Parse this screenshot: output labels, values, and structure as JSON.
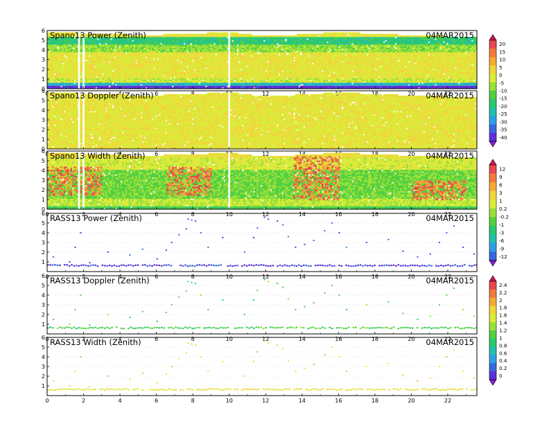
{
  "chart_data": [
    {
      "type": "heatmap",
      "title": "Spano13 Power (Zenith)",
      "date": "04MAR2015",
      "x_range": [
        0,
        23.6
      ],
      "y_range": [
        0,
        6
      ],
      "x_ticks": [
        "0",
        "2",
        "4",
        "6",
        "8",
        "10",
        "12",
        "14",
        "16",
        "18",
        "20",
        "22"
      ],
      "y_ticks": [
        "0",
        "1",
        "2",
        "3",
        "4",
        "5",
        "6"
      ],
      "colorbar": "power",
      "bands": [
        {
          "y": [
            0,
            0.35
          ],
          "level": 0.93
        },
        {
          "y": [
            0.35,
            0.75
          ],
          "level": 0.72
        },
        {
          "y": [
            0.75,
            1.2
          ],
          "level": 0.4
        },
        {
          "y": [
            1.2,
            3.8
          ],
          "level": 0.36
        },
        {
          "y": [
            3.8,
            4.6
          ],
          "level": 0.47
        },
        {
          "y": [
            4.6,
            5.4
          ],
          "level": 0.62
        }
      ],
      "top_profile": [
        [
          0,
          5.9
        ],
        [
          5.5,
          5.6
        ],
        [
          10,
          5.9
        ],
        [
          12,
          5.5
        ],
        [
          16,
          5.9
        ],
        [
          20,
          5.6
        ],
        [
          23.6,
          5.4
        ]
      ]
    },
    {
      "type": "heatmap",
      "title": "Spano13 Doppler (Zenith)",
      "date": "04MAR2015",
      "x_range": [
        0,
        23.6
      ],
      "y_range": [
        0,
        6
      ],
      "x_ticks": [
        "0",
        "2",
        "4",
        "6",
        "8",
        "10",
        "12",
        "14",
        "16",
        "18",
        "20",
        "22"
      ],
      "y_ticks": [
        "0",
        "1",
        "2",
        "3",
        "4",
        "5",
        "6"
      ],
      "colorbar": "power",
      "bands": [
        {
          "y": [
            0,
            5.4
          ],
          "level": 0.36
        }
      ],
      "top_profile": [
        [
          0,
          5.9
        ],
        [
          5.5,
          5.6
        ],
        [
          10,
          5.9
        ],
        [
          12,
          5.5
        ],
        [
          16,
          5.9
        ],
        [
          20,
          5.6
        ],
        [
          23.6,
          5.4
        ]
      ]
    },
    {
      "type": "heatmap",
      "title": "Spano13 Width (Zenith)",
      "date": "04MAR2015",
      "x_range": [
        0,
        23.6
      ],
      "y_range": [
        0,
        6
      ],
      "x_ticks": [
        "0",
        "2",
        "4",
        "6",
        "8",
        "10",
        "12",
        "14",
        "16",
        "18",
        "20",
        "22"
      ],
      "y_ticks": [
        "0",
        "1",
        "2",
        "3",
        "4",
        "5",
        "6"
      ],
      "colorbar": "width",
      "bands": [
        {
          "y": [
            0,
            0.4
          ],
          "level": 0.62
        },
        {
          "y": [
            0.4,
            1.2
          ],
          "level": 0.45
        },
        {
          "y": [
            1.2,
            4.2
          ],
          "level": 0.55
        },
        {
          "y": [
            4.2,
            5.4
          ],
          "level": 0.42
        }
      ],
      "hotspots": [
        {
          "x": [
            0,
            3
          ],
          "y": [
            1.5,
            4.5
          ]
        },
        {
          "x": [
            6.5,
            9
          ],
          "y": [
            1.5,
            4.5
          ]
        },
        {
          "x": [
            13.5,
            16
          ],
          "y": [
            1,
            5.6
          ]
        },
        {
          "x": [
            20,
            23
          ],
          "y": [
            1,
            3
          ]
        }
      ],
      "top_profile": [
        [
          0,
          5.9
        ],
        [
          5.5,
          5.6
        ],
        [
          10,
          5.9
        ],
        [
          12,
          5.5
        ],
        [
          16,
          5.9
        ],
        [
          20,
          5.6
        ],
        [
          23.6,
          5.4
        ]
      ]
    },
    {
      "type": "scatter",
      "title": "RASS13 Power (Zenith)",
      "date": "04MAR2015",
      "x_range": [
        0,
        23.6
      ],
      "y_range": [
        0,
        6
      ],
      "x_ticks": [
        "0",
        "2",
        "4",
        "6",
        "8",
        "10",
        "12",
        "14",
        "16",
        "18",
        "20",
        "22"
      ],
      "y_ticks": [
        "1",
        "2",
        "3",
        "4",
        "5",
        "6"
      ],
      "colorbar": "rass",
      "base_height": 0.6,
      "base_level": 0.9,
      "points": [
        [
          0.3,
          1.5
        ],
        [
          1.2,
          1.0
        ],
        [
          1.5,
          2.5
        ],
        [
          1.8,
          4.0
        ],
        [
          2.3,
          0.9
        ],
        [
          3.3,
          2.0
        ],
        [
          4.5,
          1.7
        ],
        [
          5.2,
          2.3
        ],
        [
          6.0,
          1.3
        ],
        [
          6.5,
          2.2
        ],
        [
          6.8,
          3.0
        ],
        [
          7.2,
          3.8
        ],
        [
          7.6,
          4.4
        ],
        [
          7.7,
          5.4
        ],
        [
          7.9,
          5.3
        ],
        [
          8.1,
          5.2
        ],
        [
          8.4,
          4.0
        ],
        [
          8.8,
          2.5
        ],
        [
          9.6,
          3.5
        ],
        [
          10.8,
          2.0
        ],
        [
          11.3,
          3.5
        ],
        [
          11.5,
          4.5
        ],
        [
          11.9,
          5.6
        ],
        [
          12.1,
          5.4
        ],
        [
          12.6,
          5.2
        ],
        [
          12.9,
          4.8
        ],
        [
          13.2,
          3.6
        ],
        [
          13.6,
          2.5
        ],
        [
          14.1,
          2.8
        ],
        [
          14.6,
          3.2
        ],
        [
          15.2,
          4.2
        ],
        [
          15.6,
          5.0
        ],
        [
          16.0,
          4.0
        ],
        [
          16.4,
          2.5
        ],
        [
          17.5,
          3.0
        ],
        [
          18.7,
          3.3
        ],
        [
          19.5,
          2.1
        ],
        [
          20.3,
          1.5
        ],
        [
          21.0,
          1.8
        ],
        [
          21.5,
          3.0
        ],
        [
          21.9,
          4.0
        ],
        [
          22.3,
          4.7
        ],
        [
          22.8,
          2.5
        ],
        [
          23.4,
          1.8
        ]
      ]
    },
    {
      "type": "scatter",
      "title": "RASS13 Doppler (Zenith)",
      "date": "04MAR2015",
      "x_range": [
        0,
        23.6
      ],
      "y_range": [
        0,
        6
      ],
      "x_ticks": [
        "0",
        "2",
        "4",
        "6",
        "8",
        "10",
        "12",
        "14",
        "16",
        "18",
        "20",
        "22"
      ],
      "y_ticks": [
        "1",
        "2",
        "3",
        "4",
        "5",
        "6"
      ],
      "colorbar": "rass",
      "base_height": 0.6,
      "base_level": 0.55,
      "points": [
        [
          0.3,
          1.5
        ],
        [
          1.2,
          1.0
        ],
        [
          1.5,
          2.5
        ],
        [
          1.8,
          4.0
        ],
        [
          2.3,
          0.9
        ],
        [
          3.3,
          2.0
        ],
        [
          4.5,
          1.7
        ],
        [
          5.2,
          2.3
        ],
        [
          6.0,
          1.3
        ],
        [
          6.5,
          2.2
        ],
        [
          6.8,
          3.0
        ],
        [
          7.2,
          3.8
        ],
        [
          7.6,
          4.4
        ],
        [
          7.7,
          5.4
        ],
        [
          7.9,
          5.3
        ],
        [
          8.1,
          5.2
        ],
        [
          8.4,
          4.0
        ],
        [
          8.8,
          2.5
        ],
        [
          9.6,
          3.5
        ],
        [
          10.8,
          2.0
        ],
        [
          11.3,
          3.5
        ],
        [
          11.5,
          4.5
        ],
        [
          11.9,
          5.6
        ],
        [
          12.1,
          5.4
        ],
        [
          12.6,
          5.2
        ],
        [
          12.9,
          4.8
        ],
        [
          13.2,
          3.6
        ],
        [
          13.6,
          2.5
        ],
        [
          14.1,
          2.8
        ],
        [
          14.6,
          3.2
        ],
        [
          15.2,
          4.2
        ],
        [
          15.6,
          5.0
        ],
        [
          16.0,
          4.0
        ],
        [
          16.4,
          2.5
        ],
        [
          17.5,
          3.0
        ],
        [
          18.7,
          3.3
        ],
        [
          19.5,
          2.1
        ],
        [
          20.3,
          1.5
        ],
        [
          21.0,
          1.8
        ],
        [
          21.5,
          3.0
        ],
        [
          21.9,
          4.0
        ],
        [
          22.3,
          4.7
        ],
        [
          22.8,
          2.5
        ],
        [
          23.4,
          1.8
        ]
      ]
    },
    {
      "type": "scatter",
      "title": "RASS13 Width (Zenith)",
      "date": "04MAR2015",
      "x_range": [
        0,
        23.6
      ],
      "y_range": [
        0,
        6
      ],
      "x_ticks": [
        "0",
        "2",
        "4",
        "6",
        "8",
        "10",
        "12",
        "14",
        "16",
        "18",
        "20",
        "22"
      ],
      "y_ticks": [
        "1",
        "2",
        "3",
        "4",
        "5",
        "6"
      ],
      "colorbar": "rass",
      "base_height": 0.6,
      "base_level": 0.35,
      "points": [
        [
          0.3,
          1.5
        ],
        [
          1.2,
          1.0
        ],
        [
          1.5,
          2.5
        ],
        [
          1.8,
          4.0
        ],
        [
          2.3,
          0.9
        ],
        [
          3.3,
          2.0
        ],
        [
          4.5,
          1.7
        ],
        [
          5.2,
          2.3
        ],
        [
          6.0,
          1.3
        ],
        [
          6.5,
          2.2
        ],
        [
          6.8,
          3.0
        ],
        [
          7.2,
          3.8
        ],
        [
          7.6,
          4.4
        ],
        [
          7.7,
          5.4
        ],
        [
          7.9,
          5.3
        ],
        [
          8.1,
          5.2
        ],
        [
          8.4,
          4.0
        ],
        [
          8.8,
          2.5
        ],
        [
          9.6,
          3.5
        ],
        [
          10.8,
          2.0
        ],
        [
          11.3,
          3.5
        ],
        [
          11.5,
          4.5
        ],
        [
          11.9,
          5.6
        ],
        [
          12.1,
          5.4
        ],
        [
          12.6,
          5.2
        ],
        [
          12.9,
          4.8
        ],
        [
          13.2,
          3.6
        ],
        [
          13.6,
          2.5
        ],
        [
          14.1,
          2.8
        ],
        [
          14.6,
          3.2
        ],
        [
          15.2,
          4.2
        ],
        [
          15.6,
          5.0
        ],
        [
          16.0,
          4.0
        ],
        [
          16.4,
          2.5
        ],
        [
          17.5,
          3.0
        ],
        [
          18.7,
          3.3
        ],
        [
          19.5,
          2.1
        ],
        [
          20.3,
          1.5
        ],
        [
          21.0,
          1.8
        ],
        [
          21.5,
          3.0
        ],
        [
          21.9,
          4.0
        ],
        [
          22.3,
          4.7
        ],
        [
          22.8,
          2.5
        ],
        [
          23.4,
          1.8
        ]
      ]
    }
  ],
  "colorbars": {
    "power": {
      "labels": [
        "20",
        "15",
        "10",
        "5",
        "0",
        "-5",
        "-10",
        "-15",
        "-20",
        "-25",
        "-30",
        "-35",
        "-40"
      ],
      "colors": [
        "#d4145a",
        "#e8474f",
        "#f07a3c",
        "#f5ab35",
        "#f2d53c",
        "#d9ec3a",
        "#9be03a",
        "#52d040",
        "#2bc870",
        "#25bfae",
        "#2f9fe0",
        "#3a66e0",
        "#5b32d8",
        "#8a1fd6"
      ]
    },
    "width": {
      "labels": [
        "12",
        "9",
        "6",
        "3",
        "1",
        "0.2",
        "-0.2",
        "-1",
        "-3",
        "-6",
        "-9",
        "-12"
      ],
      "colors": [
        "#d4145a",
        "#e8474f",
        "#f07a3c",
        "#f5ab35",
        "#f2d53c",
        "#d9ec3a",
        "#9be03a",
        "#52d040",
        "#2bc870",
        "#25bfae",
        "#2f9fe0",
        "#3a66e0",
        "#8a1fd6"
      ]
    },
    "rass": {
      "labels": [
        "2.4",
        "2.2",
        "2",
        "1.8",
        "1.6",
        "1.4",
        "1.2",
        "1",
        "0.8",
        "0.6",
        "0.4",
        "0.2",
        "0"
      ],
      "colors": [
        "#d4145a",
        "#e8474f",
        "#f07a3c",
        "#f5ab35",
        "#f2d53c",
        "#d9ec3a",
        "#9be03a",
        "#52d040",
        "#2bc870",
        "#25bfae",
        "#2f9fe0",
        "#3a66e0",
        "#5b32d8",
        "#8a1fd6"
      ]
    }
  }
}
